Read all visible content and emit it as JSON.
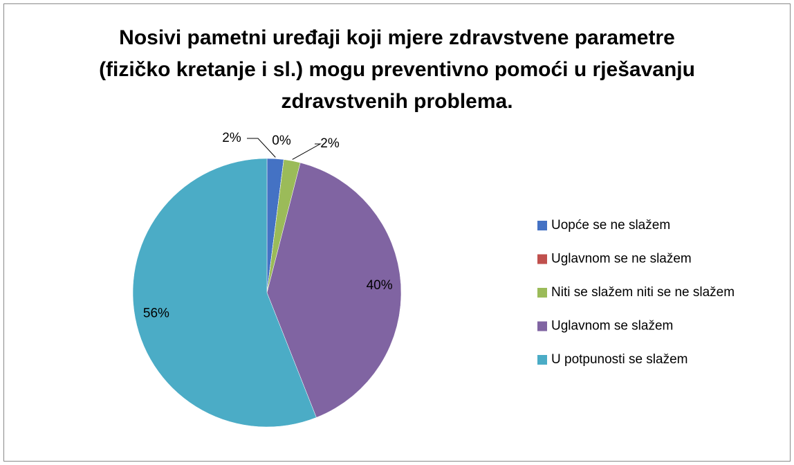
{
  "chart_data": {
    "type": "pie",
    "title": "Nosivi pametni uređaji koji mjere zdravstvene parametre (fizičko kretanje i sl.) mogu preventivno pomoći u rješavanju zdravstvenih problema.",
    "categories": [
      "Uopće se ne slažem",
      "Uglavnom se ne slažem",
      "Niti se slažem niti se ne slažem",
      "Uglavnom se slažem",
      "U potpunosti se slažem"
    ],
    "values": [
      2,
      0,
      2,
      40,
      56
    ],
    "value_labels": [
      "2%",
      "0%",
      "2%",
      "40%",
      "56%"
    ],
    "colors": [
      "#4472c4",
      "#c0504d",
      "#9bbb59",
      "#8064a2",
      "#4bacc6"
    ],
    "legend": "right"
  }
}
